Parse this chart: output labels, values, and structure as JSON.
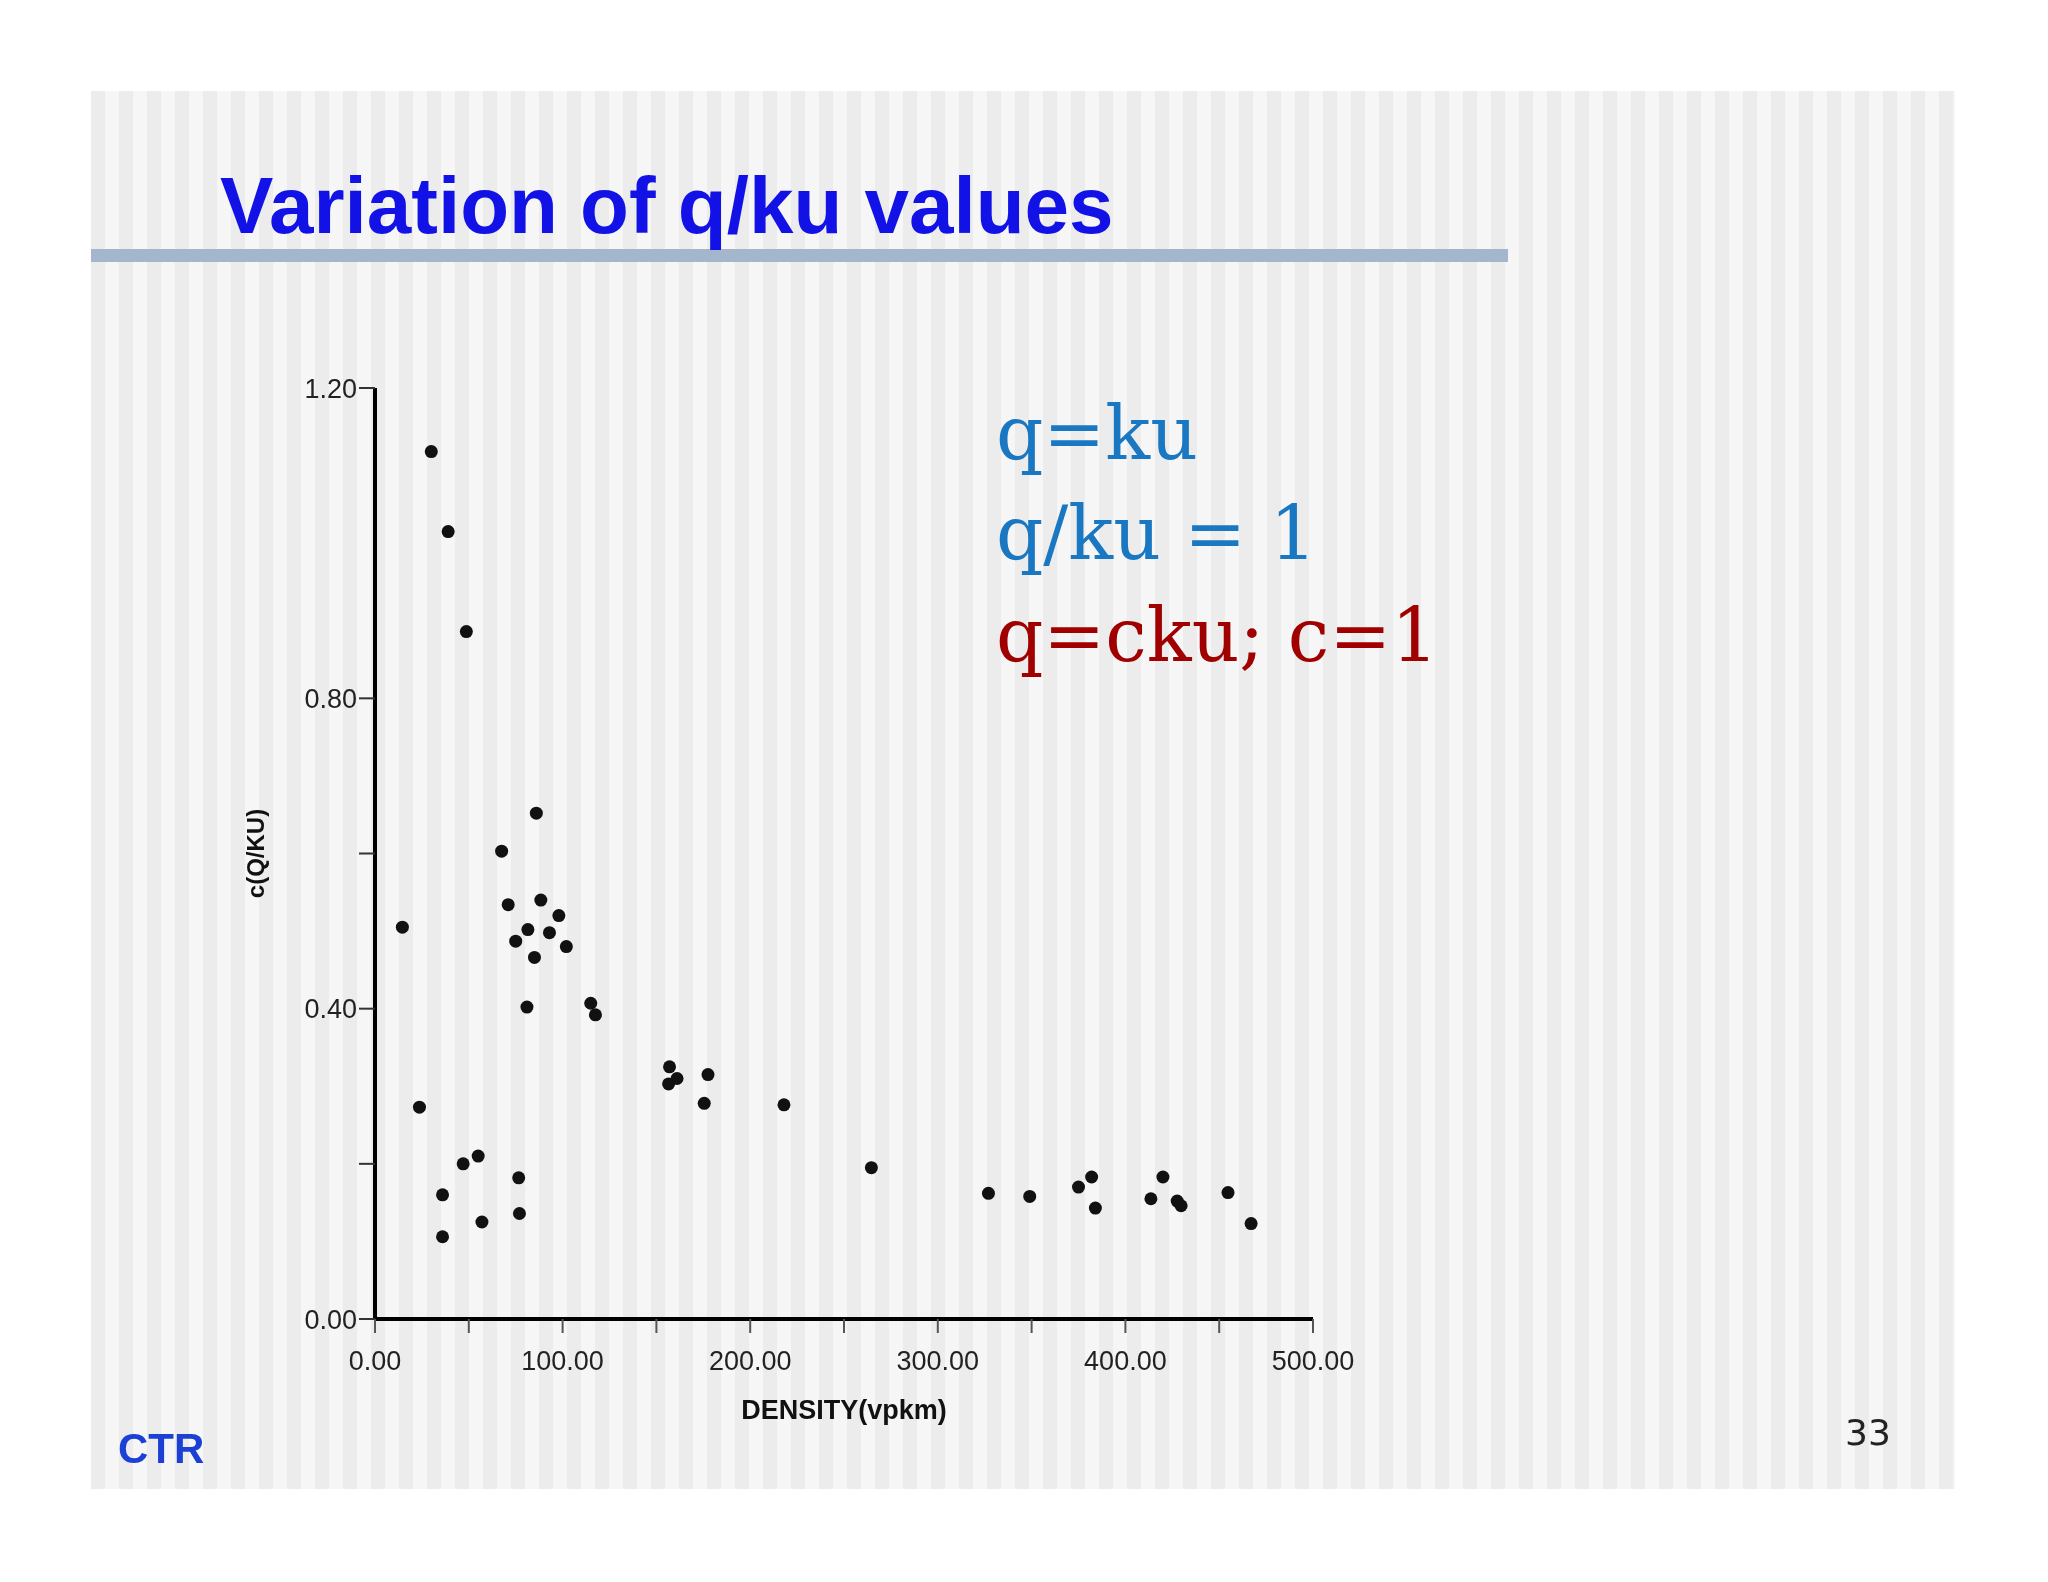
{
  "chart_data": {
    "type": "scatter",
    "title": "Variation of q/ku values",
    "xlabel": "DENSITY(vpkm)",
    "ylabel": "c(Q/KU)",
    "annotations": [
      "q=ku",
      "q/ku = 1",
      "q=cku; c=1",
      "CTR",
      "33"
    ],
    "x": [
      14.6,
      30,
      39,
      48.7,
      23.7,
      36,
      36,
      47,
      55,
      57,
      76.6,
      77,
      67.5,
      71,
      75,
      81.5,
      81,
      85,
      86,
      88.4,
      93,
      98,
      102,
      115,
      117.5,
      157,
      156.5,
      161,
      175.5,
      177.5,
      218,
      264.6,
      327,
      349,
      375,
      382,
      384,
      413.6,
      420,
      427.6,
      429.7,
      454.7,
      467
    ],
    "series": [
      {
        "color": "#111111",
        "values": [
          0.505,
          1.118,
          1.015,
          0.886,
          0.273,
          0.16,
          0.106,
          0.2,
          0.21,
          0.125,
          0.182,
          0.136,
          0.603,
          0.534,
          0.487,
          0.502,
          0.402,
          0.466,
          0.652,
          0.54,
          0.498,
          0.52,
          0.48,
          0.407,
          0.392,
          0.325,
          0.303,
          0.31,
          0.278,
          0.315,
          0.276,
          0.195,
          0.162,
          0.158,
          0.17,
          0.183,
          0.143,
          0.155,
          0.183,
          0.152,
          0.146,
          0.163,
          0.123
        ]
      }
    ],
    "xlim": [
      0,
      500
    ],
    "xticks": [
      {
        "value": 0,
        "label": "0.00"
      },
      {
        "value": 50,
        "label": null
      },
      {
        "value": 100,
        "label": "100.00"
      },
      {
        "value": 150,
        "label": null
      },
      {
        "value": 200,
        "label": "200.00"
      },
      {
        "value": 250,
        "label": null
      },
      {
        "value": 300,
        "label": "300.00"
      },
      {
        "value": 350,
        "label": null
      },
      {
        "value": 400,
        "label": "400.00"
      },
      {
        "value": 450,
        "label": null
      },
      {
        "value": 500,
        "label": "500.00"
      }
    ],
    "ylim": [
      0,
      1.2
    ],
    "yticks": [
      {
        "value": 0,
        "label": "0.00"
      },
      {
        "value": 0.2,
        "label": null
      },
      {
        "value": 0.4,
        "label": "0.40"
      },
      {
        "value": 0.6,
        "label": null
      },
      {
        "value": 0.8,
        "label": "0.80"
      },
      {
        "value": 1.2,
        "label": "1.20"
      }
    ],
    "marker": "circle",
    "grid": false,
    "legend": false
  }
}
